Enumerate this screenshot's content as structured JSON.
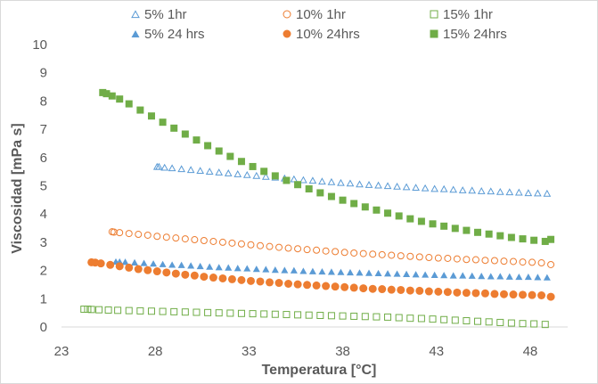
{
  "chart_data": {
    "type": "scatter",
    "xlabel": "Temperatura  [°C]",
    "ylabel": "Viscosidad  [mPa s]",
    "xlim": [
      23,
      50
    ],
    "ylim": [
      0,
      10
    ],
    "xticks": [
      23,
      28,
      33,
      38,
      43,
      48
    ],
    "yticks": [
      0,
      1,
      2,
      3,
      4,
      5,
      6,
      7,
      8,
      9,
      10
    ],
    "grid": false,
    "legend": "top",
    "series": [
      {
        "name": "5% 1hr",
        "color": "#5b9bd5",
        "marker": "triangle",
        "filled": false,
        "x": [
          28.1,
          28.2,
          28.5,
          28.9,
          29.4,
          29.9,
          30.4,
          30.9,
          31.4,
          31.9,
          32.4,
          32.9,
          33.4,
          33.9,
          34.4,
          34.9,
          35.4,
          35.9,
          36.4,
          36.9,
          37.4,
          37.9,
          38.4,
          38.9,
          39.4,
          39.9,
          40.4,
          40.9,
          41.4,
          41.9,
          42.4,
          42.9,
          43.4,
          43.9,
          44.4,
          44.9,
          45.4,
          45.9,
          46.4,
          46.9,
          47.4,
          47.9,
          48.4,
          48.9
        ],
        "y": [
          5.68,
          5.68,
          5.65,
          5.63,
          5.6,
          5.57,
          5.54,
          5.51,
          5.48,
          5.45,
          5.42,
          5.39,
          5.36,
          5.33,
          5.3,
          5.27,
          5.24,
          5.21,
          5.19,
          5.16,
          5.14,
          5.11,
          5.09,
          5.06,
          5.04,
          5.02,
          5.0,
          4.98,
          4.96,
          4.94,
          4.92,
          4.9,
          4.89,
          4.87,
          4.85,
          4.84,
          4.82,
          4.81,
          4.79,
          4.78,
          4.77,
          4.75,
          4.74,
          4.73
        ]
      },
      {
        "name": "10% 1hr",
        "color": "#ed7d31",
        "marker": "circle",
        "filled": false,
        "x": [
          25.7,
          25.8,
          26.1,
          26.6,
          27.1,
          27.6,
          28.1,
          28.6,
          29.1,
          29.6,
          30.1,
          30.6,
          31.1,
          31.6,
          32.1,
          32.6,
          33.1,
          33.6,
          34.1,
          34.6,
          35.1,
          35.6,
          36.1,
          36.6,
          37.1,
          37.6,
          38.1,
          38.6,
          39.1,
          39.6,
          40.1,
          40.6,
          41.1,
          41.6,
          42.1,
          42.6,
          43.1,
          43.6,
          44.1,
          44.6,
          45.1,
          45.6,
          46.1,
          46.6,
          47.1,
          47.6,
          48.1,
          48.6,
          49.1
        ],
        "y": [
          3.37,
          3.36,
          3.34,
          3.31,
          3.28,
          3.25,
          3.21,
          3.18,
          3.15,
          3.12,
          3.09,
          3.06,
          3.03,
          3.0,
          2.97,
          2.94,
          2.91,
          2.88,
          2.85,
          2.82,
          2.79,
          2.77,
          2.74,
          2.72,
          2.69,
          2.67,
          2.64,
          2.62,
          2.6,
          2.58,
          2.56,
          2.54,
          2.52,
          2.5,
          2.48,
          2.46,
          2.44,
          2.43,
          2.41,
          2.39,
          2.38,
          2.36,
          2.35,
          2.33,
          2.32,
          2.3,
          2.29,
          2.27,
          2.21
        ]
      },
      {
        "name": "15% 1hr",
        "color": "#70ad47",
        "marker": "square",
        "filled": false,
        "x": [
          24.2,
          24.4,
          24.6,
          25.0,
          25.5,
          26.0,
          26.6,
          27.2,
          27.8,
          28.4,
          29.0,
          29.6,
          30.2,
          30.8,
          31.4,
          32.0,
          32.6,
          33.2,
          33.8,
          34.4,
          35.0,
          35.6,
          36.2,
          36.8,
          37.4,
          38.0,
          38.6,
          39.2,
          39.8,
          40.4,
          41.0,
          41.6,
          42.2,
          42.8,
          43.4,
          44.0,
          44.6,
          45.2,
          45.8,
          46.4,
          47.0,
          47.6,
          48.2,
          48.8
        ],
        "y": [
          0.63,
          0.63,
          0.62,
          0.61,
          0.6,
          0.59,
          0.58,
          0.57,
          0.56,
          0.55,
          0.54,
          0.53,
          0.52,
          0.51,
          0.5,
          0.49,
          0.48,
          0.47,
          0.46,
          0.45,
          0.44,
          0.43,
          0.42,
          0.41,
          0.4,
          0.39,
          0.38,
          0.37,
          0.36,
          0.35,
          0.33,
          0.31,
          0.3,
          0.28,
          0.26,
          0.24,
          0.22,
          0.2,
          0.18,
          0.16,
          0.14,
          0.12,
          0.11,
          0.09
        ]
      },
      {
        "name": "5% 24 hrs",
        "color": "#5b9bd5",
        "marker": "triangle",
        "filled": true,
        "x": [
          25.9,
          26.1,
          26.4,
          26.9,
          27.4,
          27.9,
          28.4,
          28.9,
          29.4,
          29.9,
          30.4,
          30.9,
          31.4,
          31.9,
          32.4,
          32.9,
          33.4,
          33.9,
          34.4,
          34.9,
          35.4,
          35.9,
          36.4,
          36.9,
          37.4,
          37.9,
          38.4,
          38.9,
          39.4,
          39.9,
          40.4,
          40.9,
          41.4,
          41.9,
          42.4,
          42.9,
          43.4,
          43.9,
          44.4,
          44.9,
          45.4,
          45.9,
          46.4,
          46.9,
          47.4,
          47.9,
          48.4,
          48.9
        ],
        "y": [
          2.32,
          2.32,
          2.31,
          2.29,
          2.27,
          2.25,
          2.23,
          2.21,
          2.2,
          2.18,
          2.16,
          2.14,
          2.12,
          2.11,
          2.09,
          2.08,
          2.06,
          2.05,
          2.03,
          2.02,
          2.01,
          1.99,
          1.98,
          1.97,
          1.96,
          1.95,
          1.94,
          1.93,
          1.92,
          1.91,
          1.9,
          1.89,
          1.88,
          1.87,
          1.86,
          1.85,
          1.84,
          1.83,
          1.83,
          1.82,
          1.81,
          1.8,
          1.8,
          1.79,
          1.78,
          1.78,
          1.77,
          1.76
        ]
      },
      {
        "name": "10% 24hrs",
        "color": "#ed7d31",
        "marker": "circle",
        "filled": true,
        "x": [
          24.6,
          24.8,
          25.1,
          25.6,
          26.1,
          26.6,
          27.1,
          27.6,
          28.1,
          28.6,
          29.1,
          29.6,
          30.1,
          30.6,
          31.1,
          31.6,
          32.1,
          32.6,
          33.1,
          33.6,
          34.1,
          34.6,
          35.1,
          35.6,
          36.1,
          36.6,
          37.1,
          37.6,
          38.1,
          38.6,
          39.1,
          39.6,
          40.1,
          40.6,
          41.1,
          41.6,
          42.1,
          42.6,
          43.1,
          43.6,
          44.1,
          44.6,
          45.1,
          45.6,
          46.1,
          46.6,
          47.1,
          47.6,
          48.1,
          48.6,
          49.1
        ],
        "y": [
          2.29,
          2.28,
          2.25,
          2.2,
          2.15,
          2.1,
          2.05,
          2.01,
          1.97,
          1.93,
          1.89,
          1.85,
          1.82,
          1.78,
          1.75,
          1.72,
          1.69,
          1.66,
          1.63,
          1.61,
          1.58,
          1.56,
          1.53,
          1.51,
          1.49,
          1.47,
          1.45,
          1.43,
          1.41,
          1.39,
          1.37,
          1.35,
          1.34,
          1.32,
          1.31,
          1.29,
          1.28,
          1.26,
          1.25,
          1.24,
          1.22,
          1.21,
          1.2,
          1.19,
          1.17,
          1.16,
          1.15,
          1.14,
          1.13,
          1.12,
          1.07
        ]
      },
      {
        "name": "15% 24hrs",
        "color": "#70ad47",
        "marker": "square",
        "filled": true,
        "x": [
          25.2,
          25.4,
          25.7,
          26.1,
          26.6,
          27.2,
          27.8,
          28.4,
          29.0,
          29.6,
          30.2,
          30.8,
          31.4,
          32.0,
          32.6,
          33.2,
          33.8,
          34.4,
          35.0,
          35.6,
          36.2,
          36.8,
          37.4,
          38.0,
          38.6,
          39.2,
          39.8,
          40.4,
          41.0,
          41.6,
          42.2,
          42.8,
          43.4,
          44.0,
          44.6,
          45.2,
          45.8,
          46.4,
          47.0,
          47.6,
          48.2,
          48.8,
          49.1
        ],
        "y": [
          8.3,
          8.26,
          8.18,
          8.07,
          7.9,
          7.68,
          7.47,
          7.25,
          7.04,
          6.83,
          6.62,
          6.42,
          6.23,
          6.04,
          5.86,
          5.68,
          5.51,
          5.35,
          5.19,
          5.04,
          4.89,
          4.75,
          4.62,
          4.49,
          4.37,
          4.25,
          4.14,
          4.03,
          3.93,
          3.83,
          3.74,
          3.65,
          3.57,
          3.49,
          3.42,
          3.35,
          3.29,
          3.23,
          3.17,
          3.12,
          3.07,
          3.03,
          3.1
        ]
      }
    ]
  }
}
